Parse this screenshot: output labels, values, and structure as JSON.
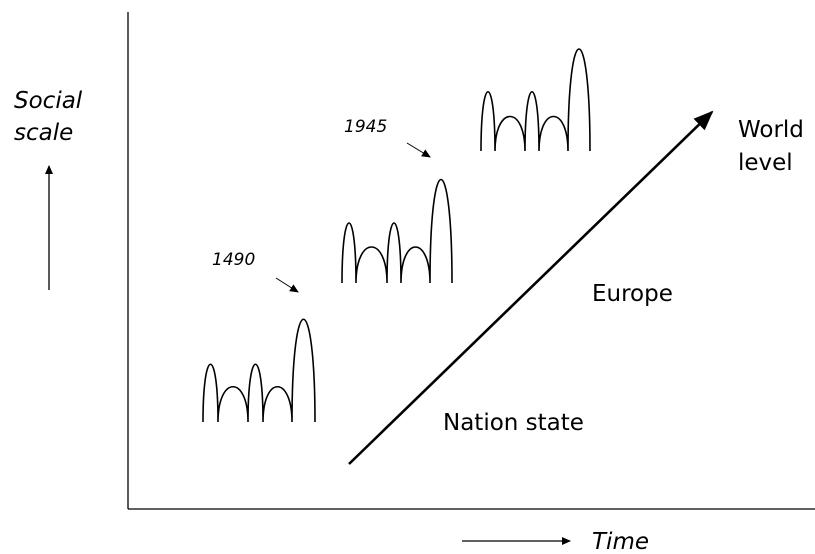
{
  "axes": {
    "y_label_line1": "Social",
    "y_label_line2": "scale",
    "x_label": "Time"
  },
  "periods": [
    {
      "year": "1490"
    },
    {
      "year": "1945"
    }
  ],
  "levels": {
    "nation": "Nation state",
    "europe": "Europe",
    "world_line1": "World",
    "world_line2": "level"
  },
  "colors": {
    "ink": "#000000",
    "background": "#ffffff"
  }
}
